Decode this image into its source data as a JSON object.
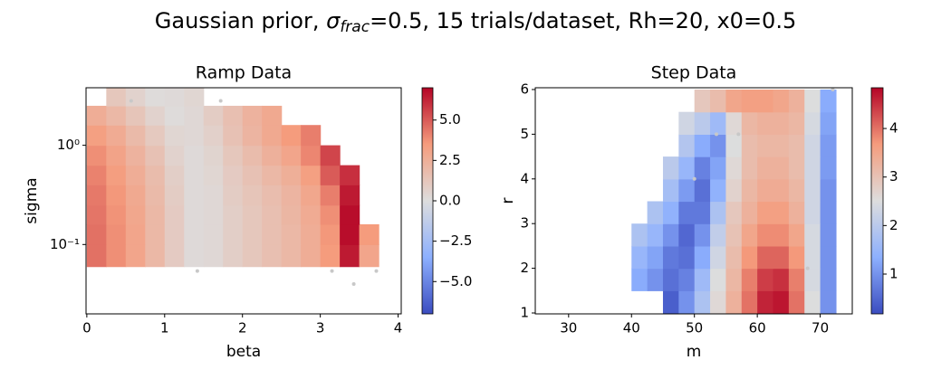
{
  "title": [
    "Gaussian prior, ",
    "σ",
    "frac",
    "=0.5, 15 trials/dataset, Rh=20, x0=0.5"
  ],
  "chart_data": [
    {
      "type": "heatmap",
      "title": "Ramp Data",
      "xlabel": "beta",
      "ylabel": "sigma",
      "yscale": "log",
      "colormap": "coolwarm",
      "xlim": [
        -0.01,
        4.04
      ],
      "ylim": [
        0.02,
        3.8
      ],
      "xticks": [
        0,
        1,
        2,
        3,
        4
      ],
      "yticks": [
        {
          "value": 0.1,
          "label": "10⁻¹"
        },
        {
          "value": 1,
          "label": "10⁰"
        }
      ],
      "x_edges": [
        0,
        0.25,
        0.5,
        0.75,
        1,
        1.25,
        1.5,
        1.75,
        2,
        2.25,
        2.5,
        2.75,
        3,
        3.25,
        3.5,
        3.75,
        4
      ],
      "y_edges": [
        0.06,
        0.1,
        0.16,
        0.25,
        0.4,
        0.63,
        1,
        1.6,
        2.5,
        4
      ],
      "z": [
        [
          4.5,
          3.8,
          3,
          2,
          1,
          0.2,
          0.3,
          0.8,
          1.2,
          1.6,
          2,
          2.6,
          3.5,
          6.5,
          3,
          null
        ],
        [
          4.5,
          3.8,
          3,
          2,
          1,
          0.2,
          0.3,
          0.8,
          1.2,
          1.6,
          2,
          2.6,
          3.6,
          6.8,
          3.5,
          null
        ],
        [
          4.4,
          3.7,
          2.9,
          2,
          1,
          0.2,
          0.3,
          0.8,
          1.2,
          1.6,
          2.1,
          2.7,
          3.8,
          6.8,
          null,
          null
        ],
        [
          4.3,
          3.6,
          2.8,
          1.9,
          0.9,
          0.2,
          0.3,
          0.9,
          1.3,
          1.7,
          2.2,
          2.9,
          4.2,
          6.5,
          null,
          null
        ],
        [
          4.1,
          3.4,
          2.6,
          1.8,
          0.8,
          0.2,
          0.4,
          1,
          1.5,
          2,
          2.5,
          3.3,
          5,
          6,
          null,
          null
        ],
        [
          3.8,
          3.1,
          2.3,
          1.5,
          0.6,
          0.2,
          0.5,
          1.2,
          1.8,
          2.4,
          3,
          4,
          5.5,
          null,
          null,
          null
        ],
        [
          3.3,
          2.7,
          1.9,
          1.1,
          0.4,
          0.3,
          0.7,
          1.5,
          2.2,
          2.8,
          3.5,
          4.2,
          null,
          null,
          null,
          null
        ],
        [
          2.6,
          2,
          1.3,
          0.6,
          0.1,
          0.3,
          0.9,
          1.6,
          2.3,
          2.8,
          null,
          null,
          null,
          null,
          null,
          null
        ],
        [
          null,
          1.2,
          0.6,
          0.1,
          0.2,
          0.4,
          null,
          null,
          null,
          null,
          null,
          null,
          null,
          null,
          null,
          null
        ]
      ],
      "points": {
        "x": [
          0.57,
          1.72,
          1.42,
          3.15,
          3.43,
          3.72
        ],
        "y": [
          2.8,
          2.8,
          0.054,
          0.054,
          0.04,
          0.054
        ],
        "color": "#c8c8c8"
      },
      "colorbar": {
        "lim": [
          -7,
          7
        ],
        "ticks": [
          {
            "value": -5,
            "label": "−5.0"
          },
          {
            "value": -2.5,
            "label": "−2.5"
          },
          {
            "value": 0,
            "label": "0.0"
          },
          {
            "value": 2.5,
            "label": "2.5"
          },
          {
            "value": 5,
            "label": "5.0"
          }
        ]
      }
    },
    {
      "type": "heatmap",
      "title": "Step Data",
      "xlabel": "m",
      "ylabel": "r",
      "yscale": "linear",
      "colormap": "coolwarm",
      "xlim": [
        24.7,
        75.1
      ],
      "ylim": [
        0.98,
        6.04
      ],
      "xticks": [
        30,
        40,
        50,
        60,
        70
      ],
      "yticks": [
        1,
        2,
        3,
        4,
        5,
        6
      ],
      "x_edges": [
        37.5,
        40,
        42.5,
        45,
        47.5,
        50,
        52.5,
        55,
        57.5,
        60,
        62.5,
        65,
        67.5,
        70,
        72.5
      ],
      "y_edges": [
        1,
        1.5,
        2,
        2.5,
        3,
        3.5,
        4,
        4.5,
        5,
        5.5,
        6
      ],
      "z": [
        [
          null,
          null,
          null,
          0.4,
          1.0,
          1.8,
          2.6,
          3.3,
          4.0,
          4.6,
          4.7,
          4.0,
          2.5,
          1.0
        ],
        [
          null,
          1.3,
          1.0,
          0.6,
          0.8,
          1.6,
          2.5,
          3.2,
          3.9,
          4.4,
          4.5,
          3.9,
          2.4,
          1.0
        ],
        [
          null,
          1.5,
          1.2,
          0.7,
          0.6,
          1.3,
          2.3,
          3.1,
          3.7,
          4.1,
          4.1,
          3.7,
          2.4,
          1.0
        ],
        [
          null,
          1.8,
          1.5,
          1.0,
          0.5,
          1.0,
          2.1,
          3.0,
          3.5,
          3.8,
          3.8,
          3.5,
          2.4,
          1.0
        ],
        [
          null,
          null,
          1.8,
          1.4,
          0.7,
          0.7,
          1.8,
          2.9,
          3.3,
          3.6,
          3.6,
          3.3,
          2.3,
          1.0
        ],
        [
          null,
          null,
          null,
          1.7,
          1.1,
          0.6,
          1.4,
          2.7,
          3.2,
          3.4,
          3.4,
          3.2,
          2.3,
          1.0
        ],
        [
          null,
          null,
          null,
          2.0,
          1.5,
          0.8,
          1.2,
          2.6,
          3.1,
          3.3,
          3.3,
          3.1,
          2.3,
          1.1
        ],
        [
          null,
          null,
          null,
          null,
          1.9,
          1.3,
          1.0,
          2.5,
          3.1,
          3.2,
          3.2,
          3.1,
          2.3,
          1.1
        ],
        [
          null,
          null,
          null,
          null,
          2.3,
          2.0,
          1.6,
          2.6,
          3.2,
          3.3,
          3.3,
          3.2,
          2.4,
          1.2
        ],
        [
          null,
          null,
          null,
          null,
          null,
          2.9,
          3.1,
          3.5,
          3.6,
          3.6,
          3.5,
          3.3,
          2.5,
          1.3
        ]
      ],
      "points": {
        "x": [
          50,
          53.5,
          57,
          68,
          72
        ],
        "y": [
          4,
          5,
          5,
          2,
          6
        ],
        "color": "#c8c8c8"
      },
      "colorbar": {
        "lim": [
          0.18,
          4.84
        ],
        "ticks": [
          1,
          2,
          3,
          4
        ]
      }
    }
  ]
}
